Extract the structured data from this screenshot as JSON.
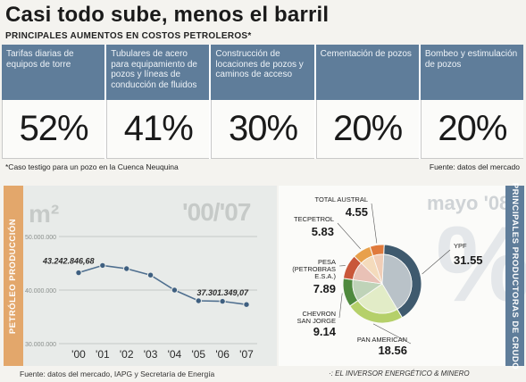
{
  "header": {
    "title": "Casi todo sube, menos el barril",
    "subtitle": "PRINCIPALES AUMENTOS EN COSTOS PETROLEROS*"
  },
  "costs": [
    {
      "label": "Tarifas diarias de equipos de torre",
      "value": "52%"
    },
    {
      "label": "Tubulares de acero para equipamiento de pozos y líneas de conducción de fluidos",
      "value": "41%"
    },
    {
      "label": "Construcción de locaciones de pozos y caminos de acceso",
      "value": "30%"
    },
    {
      "label": "Cementación de pozos",
      "value": "20%"
    },
    {
      "label": "Bombeo y estimulación de pozos",
      "value": "20%"
    }
  ],
  "footnote": "*Caso testigo para un pozo en la Cuenca Neuquina",
  "source_top": "Fuente: datos del mercado",
  "production": {
    "side_title": "PETRÓLEO PRODUCCIÓN",
    "unit": "m²",
    "period": "'00/'07",
    "source": "Fuente: datos del mercado, IAPG y Secretaría de Energía"
  },
  "producers": {
    "side_title": "PRINCIPALES PRODUCTORAS DE CRUDO",
    "date": "mayo '08",
    "watermark": "%",
    "source": "·: EL INVERSOR ENERGÉTICO & MINERO"
  },
  "chart_data": [
    {
      "type": "bar",
      "categories": [
        "Tarifas diarias de equipos de torre",
        "Tubulares de acero para equipamiento de pozos y líneas de conducción de fluidos",
        "Construcción de locaciones de pozos y caminos de acceso",
        "Cementación de pozos",
        "Bombeo y estimulación de pozos"
      ],
      "values": [
        52,
        41,
        30,
        20,
        20
      ],
      "title": "PRINCIPALES AUMENTOS EN COSTOS PETROLEROS*"
    },
    {
      "type": "line",
      "categories": [
        "'00",
        "'01",
        "'02",
        "'03",
        "'04",
        "'05",
        "'06",
        "'07"
      ],
      "values": [
        43242846.68,
        44600000,
        44000000,
        42800000,
        40000000,
        38000000,
        37900000,
        37301349.07
      ],
      "yticks": [
        "50.000.000",
        "40.000.000",
        "30.000.000"
      ],
      "ylim": [
        30000000,
        50000000
      ],
      "annotations": [
        {
          "index": 0,
          "text": "43.242.846,68"
        },
        {
          "index": 7,
          "text": "37.301.349,07"
        }
      ],
      "grid": true,
      "colors": {
        "line": "#4f6f8f",
        "marker": "#3e5f80"
      }
    },
    {
      "type": "pie",
      "labels": [
        "YPF",
        "PAN AMERICAN",
        "CHEVRON SAN JORGE",
        "PESA (PETROBRAS E.S.A.)",
        "TECPETROL",
        "TOTAL AUSTRAL"
      ],
      "label_lines": [
        [
          "YPF"
        ],
        [
          "PAN AMERICAN"
        ],
        [
          "CHEVRON",
          "SAN JORGE"
        ],
        [
          "PESA",
          "(PETROBRAS",
          "E.S.A.)"
        ],
        [
          "TECPETROL"
        ],
        [
          "TOTAL AUSTRAL"
        ]
      ],
      "values": [
        31.55,
        18.56,
        9.14,
        7.89,
        5.83,
        4.55
      ],
      "value_labels": [
        "31.55",
        "18.56",
        "9.14",
        "7.89",
        "5.83",
        "4.55"
      ],
      "colors": [
        "#3f5a6e",
        "#b5d06a",
        "#4f8a3e",
        "#c9573a",
        "#e8a04b",
        "#e07a3c"
      ]
    }
  ]
}
